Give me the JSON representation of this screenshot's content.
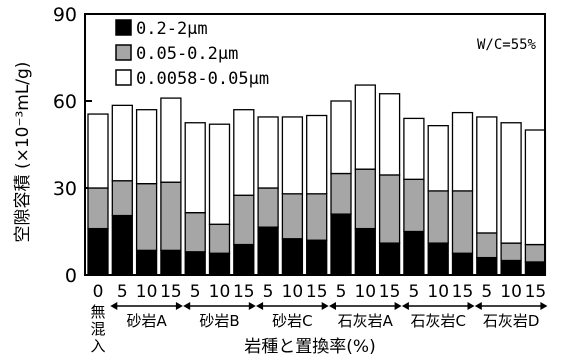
{
  "chart_data": {
    "type": "bar",
    "stacked": true,
    "ylabel": "空隙容積 (×10⁻³mL/g)",
    "xlabel": "岩種と置換率(%)",
    "annotation": "W/C=55%",
    "ylim": [
      0,
      90
    ],
    "yticks": [
      "0",
      "30",
      "60",
      "90"
    ],
    "categories": [
      "0",
      "5",
      "10",
      "15",
      "5",
      "10",
      "15",
      "5",
      "10",
      "15",
      "5",
      "10",
      "15",
      "5",
      "10",
      "15",
      "5",
      "10",
      "15"
    ],
    "groups": [
      {
        "label": "無混入",
        "start": 0,
        "end": 0
      },
      {
        "label": "砂岩A",
        "start": 1,
        "end": 3
      },
      {
        "label": "砂岩B",
        "start": 4,
        "end": 6
      },
      {
        "label": "砂岩C",
        "start": 7,
        "end": 9
      },
      {
        "label": "石灰岩A",
        "start": 10,
        "end": 12
      },
      {
        "label": "石灰岩C",
        "start": 13,
        "end": 15
      },
      {
        "label": "石灰岩D",
        "start": 16,
        "end": 18
      }
    ],
    "series": [
      {
        "name": "0.2-2μm",
        "color": "#000000",
        "values": [
          16,
          20.5,
          8.5,
          8.5,
          8,
          7.5,
          10.5,
          16.5,
          12.5,
          12,
          21,
          16,
          11,
          15,
          11,
          7.5,
          6,
          5,
          4.5
        ]
      },
      {
        "name": "0.05-0.2μm",
        "color": "#a6a6a6",
        "values": [
          14,
          12,
          23,
          23.5,
          13.5,
          10,
          17,
          13.5,
          15.5,
          16,
          14,
          20.5,
          23.5,
          18,
          18,
          21.5,
          8.5,
          6,
          6
        ]
      },
      {
        "name": "0.0058-0.05μm",
        "color": "#ffffff",
        "values": [
          25.5,
          26,
          25.5,
          29,
          31,
          34.5,
          29.5,
          24.5,
          26.5,
          27,
          25,
          29,
          28,
          21,
          22.5,
          27,
          40,
          41.5,
          39.5
        ]
      }
    ],
    "legend": "top-left",
    "grid": false
  }
}
